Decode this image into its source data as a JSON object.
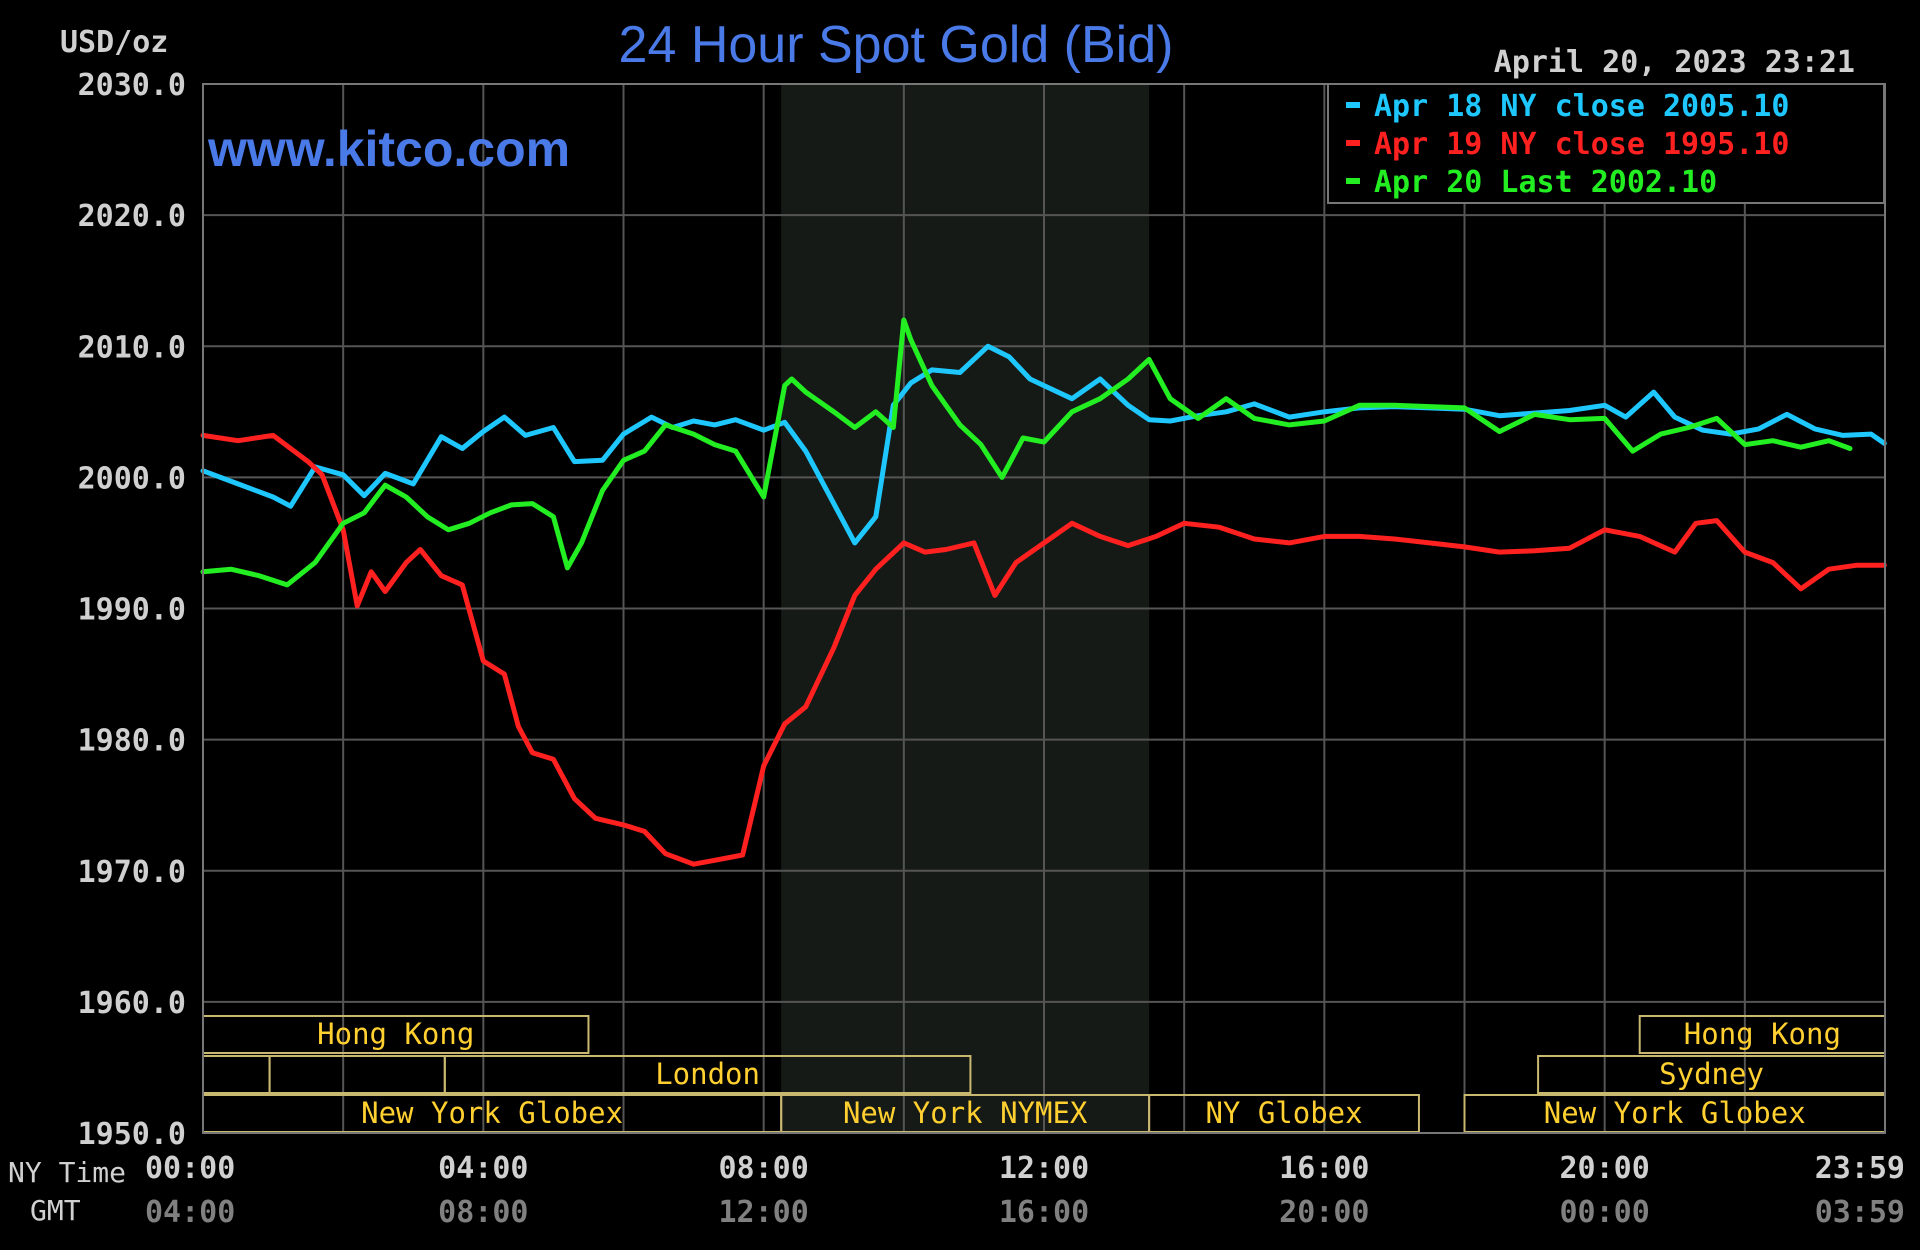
{
  "chart_data": {
    "type": "line",
    "title": "24 Hour Spot Gold (Bid)",
    "ylabel": "USD/oz",
    "timestamp": "April 20, 2023 23:21",
    "watermark": "www.kitco.com",
    "ylim": [
      1950,
      2030
    ],
    "y_ticks": [
      "2030.0",
      "2020.0",
      "2010.0",
      "2000.0",
      "1990.0",
      "1980.0",
      "1970.0",
      "1960.0",
      "1950.0"
    ],
    "x_axis": {
      "ny_label": "NY Time",
      "gmt_label": "GMT",
      "ny_ticks": [
        "00:00",
        "04:00",
        "08:00",
        "12:00",
        "16:00",
        "20:00",
        "23:59"
      ],
      "gmt_ticks": [
        "04:00",
        "08:00",
        "12:00",
        "16:00",
        "20:00",
        "00:00",
        "03:59"
      ]
    },
    "highlight_hours": [
      8.25,
      13.5
    ],
    "series": [
      {
        "name": "Apr 18 NY close 2005.10",
        "color": "#1ec8ff",
        "x": [
          0,
          0.5,
          1,
          1.25,
          1.6,
          2,
          2.3,
          2.6,
          3,
          3.4,
          3.7,
          4,
          4.3,
          4.6,
          5,
          5.3,
          5.7,
          6,
          6.4,
          6.7,
          7,
          7.3,
          7.6,
          8,
          8.3,
          8.6,
          9,
          9.3,
          9.6,
          9.85,
          10.1,
          10.4,
          10.8,
          11.2,
          11.5,
          11.8,
          12,
          12.4,
          12.8,
          13.2,
          13.5,
          13.8,
          14.2,
          14.6,
          15,
          15.5,
          16,
          16.5,
          17,
          17.5,
          18,
          18.5,
          19,
          19.5,
          20,
          20.3,
          20.7,
          21,
          21.4,
          21.8,
          22.2,
          22.6,
          23,
          23.4,
          23.8,
          23.99
        ],
        "y": [
          2000.5,
          1999.5,
          1998.5,
          1997.8,
          2000.8,
          2000.2,
          1998.6,
          2000.3,
          1999.5,
          2003.1,
          2002.2,
          2003.5,
          2004.6,
          2003.2,
          2003.8,
          2001.2,
          2001.3,
          2003.3,
          2004.6,
          2003.8,
          2004.3,
          2004.0,
          2004.4,
          2003.6,
          2004.2,
          2002.0,
          1998.0,
          1995.0,
          1997.0,
          2005.5,
          2007.2,
          2008.2,
          2008.0,
          2010.0,
          2009.2,
          2007.5,
          2007.0,
          2006.0,
          2007.5,
          2005.5,
          2004.4,
          2004.3,
          2004.7,
          2005.0,
          2005.6,
          2004.6,
          2005.0,
          2005.3,
          2005.4,
          2005.3,
          2005.2,
          2004.7,
          2004.9,
          2005.1,
          2005.5,
          2004.6,
          2006.5,
          2004.6,
          2003.6,
          2003.3,
          2003.7,
          2004.8,
          2003.7,
          2003.2,
          2003.3,
          2002.6
        ]
      },
      {
        "name": "Apr 19 NY close 1995.10",
        "color": "#ff2020",
        "x": [
          0,
          0.5,
          1,
          1.5,
          1.7,
          2,
          2.2,
          2.4,
          2.6,
          2.9,
          3.1,
          3.4,
          3.7,
          4,
          4.3,
          4.5,
          4.7,
          5,
          5.3,
          5.6,
          6,
          6.3,
          6.6,
          7,
          7.3,
          7.7,
          8,
          8.3,
          8.6,
          9,
          9.3,
          9.6,
          10,
          10.3,
          10.6,
          11,
          11.3,
          11.6,
          12,
          12.4,
          12.8,
          13.2,
          13.6,
          14,
          14.5,
          15,
          15.5,
          16,
          16.5,
          17,
          17.5,
          18,
          18.5,
          19,
          19.5,
          20,
          20.5,
          21,
          21.3,
          21.6,
          22,
          22.4,
          22.8,
          23.2,
          23.6,
          23.99
        ],
        "y": [
          2003.2,
          2002.8,
          2003.2,
          2001.2,
          2000.2,
          1996.0,
          1990.2,
          1992.8,
          1991.3,
          1993.5,
          1994.5,
          1992.5,
          1991.8,
          1986.0,
          1985.0,
          1981.0,
          1979.0,
          1978.5,
          1975.5,
          1974.0,
          1973.5,
          1973.0,
          1971.3,
          1970.5,
          1970.8,
          1971.2,
          1978.0,
          1981.2,
          1982.5,
          1987.0,
          1991.0,
          1993.0,
          1995.0,
          1994.3,
          1994.5,
          1995.0,
          1991.0,
          1993.5,
          1995.0,
          1996.5,
          1995.5,
          1994.8,
          1995.5,
          1996.5,
          1996.2,
          1995.3,
          1995.0,
          1995.5,
          1995.5,
          1995.3,
          1995.0,
          1994.7,
          1994.3,
          1994.4,
          1994.6,
          1996.0,
          1995.5,
          1994.3,
          1996.5,
          1996.7,
          1994.3,
          1993.5,
          1991.5,
          1993.0,
          1993.3,
          1993.3
        ]
      },
      {
        "name": "Apr 20 Last 2002.10",
        "color": "#22ee22",
        "x": [
          0,
          0.4,
          0.8,
          1.2,
          1.6,
          2,
          2.3,
          2.6,
          2.9,
          3.2,
          3.5,
          3.8,
          4.1,
          4.4,
          4.7,
          5,
          5.2,
          5.4,
          5.7,
          6,
          6.3,
          6.6,
          7,
          7.3,
          7.6,
          8,
          8.3,
          8.4,
          8.6,
          9,
          9.3,
          9.6,
          9.85,
          10,
          10.1,
          10.4,
          10.8,
          11.1,
          11.4,
          11.7,
          12,
          12.4,
          12.8,
          13.2,
          13.5,
          13.8,
          14.2,
          14.6,
          15,
          15.5,
          16,
          16.5,
          17,
          17.5,
          18,
          18.5,
          19,
          19.5,
          20,
          20.4,
          20.8,
          21.2,
          21.6,
          22,
          22.4,
          22.8,
          23.2,
          23.5
        ],
        "y": [
          1992.8,
          1993.0,
          1992.5,
          1991.8,
          1993.5,
          1996.5,
          1997.3,
          1999.4,
          1998.5,
          1997.0,
          1996.0,
          1996.5,
          1997.3,
          1997.9,
          1998.0,
          1997.0,
          1993.1,
          1995.0,
          1999.0,
          2001.3,
          2002.0,
          2004.0,
          2003.3,
          2002.5,
          2002.0,
          1998.5,
          2007.0,
          2007.5,
          2006.5,
          2005.0,
          2003.8,
          2005.0,
          2003.8,
          2012.0,
          2010.5,
          2007.0,
          2004.0,
          2002.5,
          2000.0,
          2003.0,
          2002.7,
          2005.0,
          2006.0,
          2007.5,
          2009.0,
          2006.0,
          2004.5,
          2006.0,
          2004.5,
          2004.0,
          2004.3,
          2005.5,
          2005.5,
          2005.4,
          2005.3,
          2003.5,
          2004.8,
          2004.4,
          2004.5,
          2002.0,
          2003.3,
          2003.8,
          2004.5,
          2002.5,
          2002.8,
          2002.3,
          2002.8,
          2002.2
        ]
      }
    ],
    "sessions": [
      {
        "label": "Hong Kong",
        "start": 0,
        "end": 5.5,
        "row": 0
      },
      {
        "label": "",
        "start": 0,
        "end": 0.95,
        "row": 1
      },
      {
        "label": "",
        "start": 0.95,
        "end": 3.45,
        "row": 1
      },
      {
        "label": "London",
        "start": 3.45,
        "end": 10.95,
        "row": 1
      },
      {
        "label": "New York Globex",
        "start": 0,
        "end": 8.25,
        "row": 2
      },
      {
        "label": "New York NYMEX",
        "start": 8.25,
        "end": 13.5,
        "row": 2
      },
      {
        "label": "NY Globex",
        "start": 13.5,
        "end": 17.35,
        "row": 2
      },
      {
        "label": "Hong Kong",
        "start": 20.5,
        "end": 24,
        "row": 0
      },
      {
        "label": "Sydney",
        "start": 19.05,
        "end": 24,
        "row": 1
      },
      {
        "label": "New York Globex",
        "start": 18,
        "end": 24,
        "row": 2
      }
    ]
  }
}
